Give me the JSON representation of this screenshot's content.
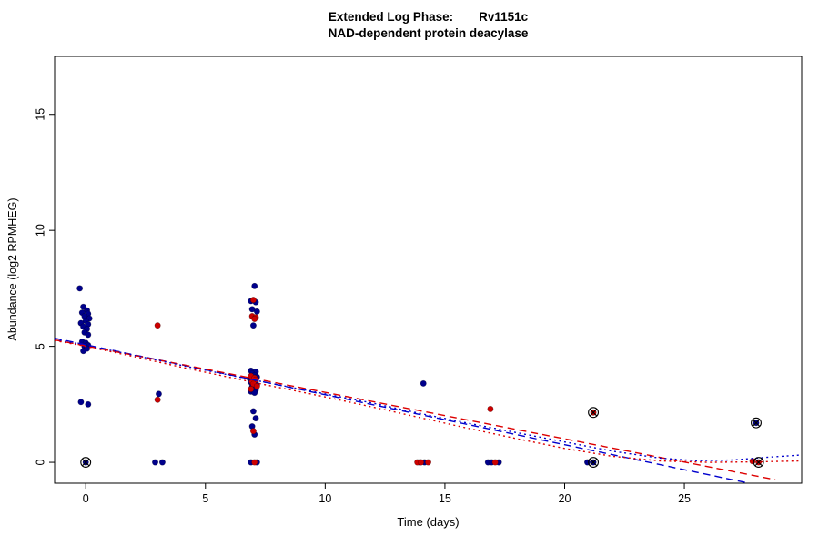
{
  "title": {
    "prefix": "Extended Log Phase:",
    "gene": "Rv1151c",
    "subtitle": "NAD-dependent protein deacylase"
  },
  "chart_data": {
    "type": "scatter",
    "title": "Extended Log Phase: Rv1151c",
    "subtitle": "NAD-dependent protein deacylase",
    "xlabel": "Time  (days)",
    "ylabel": "Abundance  (log2 RPMHEG)",
    "xlim": [
      -1.3,
      29.9
    ],
    "ylim": [
      -0.9,
      17.5
    ],
    "xticks": [
      0,
      5,
      10,
      15,
      20,
      25
    ],
    "yticks": [
      0,
      5,
      10,
      15
    ],
    "grid": false,
    "legend": "none",
    "series": [
      {
        "name": "blue",
        "color": "#00008B",
        "marker": "circle",
        "points": [
          [
            -0.25,
            7.5
          ],
          [
            -0.1,
            6.7
          ],
          [
            0.05,
            6.55
          ],
          [
            -0.15,
            6.45
          ],
          [
            0.1,
            6.4
          ],
          [
            -0.05,
            6.3
          ],
          [
            0.15,
            6.2
          ],
          [
            0,
            6.1
          ],
          [
            -0.2,
            6.0
          ],
          [
            0.1,
            5.95
          ],
          [
            -0.1,
            5.85
          ],
          [
            0.05,
            5.75
          ],
          [
            -0.05,
            5.6
          ],
          [
            0.1,
            5.5
          ],
          [
            -0.15,
            5.2
          ],
          [
            0,
            5.15
          ],
          [
            0.1,
            5.05
          ],
          [
            -0.05,
            5.0
          ],
          [
            0.05,
            4.9
          ],
          [
            -0.1,
            4.8
          ],
          [
            -0.2,
            2.6
          ],
          [
            0.1,
            2.5
          ],
          [
            3.05,
            2.95
          ],
          [
            2.9,
            0
          ],
          [
            3.2,
            0
          ],
          [
            7.05,
            7.6
          ],
          [
            6.9,
            6.95
          ],
          [
            7.1,
            6.9
          ],
          [
            6.95,
            6.6
          ],
          [
            7.15,
            6.5
          ],
          [
            7.0,
            5.9
          ],
          [
            6.9,
            3.95
          ],
          [
            7.1,
            3.9
          ],
          [
            6.95,
            3.82
          ],
          [
            7.05,
            3.75
          ],
          [
            7.15,
            3.68
          ],
          [
            6.85,
            3.6
          ],
          [
            7.0,
            3.55
          ],
          [
            7.1,
            3.5
          ],
          [
            6.9,
            3.45
          ],
          [
            7.05,
            3.4
          ],
          [
            7.15,
            3.33
          ],
          [
            6.95,
            3.27
          ],
          [
            7.0,
            3.2
          ],
          [
            7.1,
            3.12
          ],
          [
            6.9,
            3.05
          ],
          [
            7.05,
            3.0
          ],
          [
            7.0,
            2.2
          ],
          [
            7.1,
            1.9
          ],
          [
            6.95,
            1.55
          ],
          [
            7.05,
            1.2
          ],
          [
            6.9,
            0
          ],
          [
            7.15,
            0
          ],
          [
            14.1,
            3.4
          ],
          [
            14.15,
            0
          ],
          [
            13.95,
            0
          ],
          [
            16.8,
            0
          ],
          [
            16.95,
            0
          ],
          [
            17.25,
            0
          ],
          [
            20.95,
            0
          ]
        ]
      },
      {
        "name": "red",
        "color": "#CC0000",
        "marker": "circle",
        "points": [
          [
            3.0,
            5.9
          ],
          [
            3.0,
            2.7
          ],
          [
            7.0,
            7.0
          ],
          [
            6.95,
            6.3
          ],
          [
            7.1,
            6.25
          ],
          [
            7.05,
            6.18
          ],
          [
            6.9,
            3.72
          ],
          [
            7.05,
            3.64
          ],
          [
            7.1,
            3.56
          ],
          [
            6.95,
            3.47
          ],
          [
            7.0,
            3.38
          ],
          [
            7.15,
            3.28
          ],
          [
            6.9,
            3.16
          ],
          [
            7.0,
            1.35
          ],
          [
            7.05,
            0
          ],
          [
            13.85,
            0
          ],
          [
            14.0,
            0
          ],
          [
            14.3,
            0
          ],
          [
            16.9,
            2.3
          ],
          [
            17.1,
            0
          ],
          [
            27.85,
            0.05
          ]
        ]
      }
    ],
    "flagged_points": [
      {
        "x": 0,
        "y": 0,
        "series": "blue"
      },
      {
        "x": 21.2,
        "y": 2.15,
        "series": "red"
      },
      {
        "x": 21.2,
        "y": 0,
        "series": "blue"
      },
      {
        "x": 28.0,
        "y": 1.7,
        "series": "blue"
      },
      {
        "x": 28.1,
        "y": 0,
        "series": "red"
      }
    ],
    "fit_lines": [
      {
        "name": "linear-fit-blue",
        "color": "#0000CD",
        "dash": "dashed",
        "points": [
          [
            -1.3,
            5.35
          ],
          [
            27.7,
            -0.9
          ]
        ]
      },
      {
        "name": "linear-fit-red",
        "color": "#DD0000",
        "dash": "dashed",
        "points": [
          [
            -1.3,
            5.28
          ],
          [
            28.8,
            -0.75
          ]
        ]
      },
      {
        "name": "smooth-fit-blue",
        "color": "#0000CD",
        "dash": "dotted",
        "points": [
          [
            -1.3,
            5.3
          ],
          [
            0,
            5.05
          ],
          [
            2,
            4.62
          ],
          [
            4,
            4.18
          ],
          [
            7,
            3.55
          ],
          [
            10,
            2.95
          ],
          [
            12,
            2.55
          ],
          [
            14,
            2.1
          ],
          [
            16,
            1.68
          ],
          [
            18,
            1.28
          ],
          [
            20,
            0.88
          ],
          [
            22,
            0.48
          ],
          [
            24,
            0.18
          ],
          [
            25.5,
            0.07
          ],
          [
            27,
            0.1
          ],
          [
            28.5,
            0.22
          ],
          [
            29.9,
            0.32
          ]
        ]
      },
      {
        "name": "smooth-fit-red",
        "color": "#DD0000",
        "dash": "dotted",
        "points": [
          [
            -1.3,
            5.25
          ],
          [
            0,
            5.0
          ],
          [
            2,
            4.56
          ],
          [
            4,
            4.1
          ],
          [
            7,
            3.45
          ],
          [
            10,
            2.82
          ],
          [
            12,
            2.38
          ],
          [
            14,
            1.92
          ],
          [
            16,
            1.46
          ],
          [
            18,
            1.02
          ],
          [
            20,
            0.6
          ],
          [
            22,
            0.26
          ],
          [
            24,
            0.06
          ],
          [
            26,
            0.0
          ],
          [
            28,
            0.02
          ],
          [
            29.9,
            0.06
          ]
        ]
      }
    ]
  }
}
